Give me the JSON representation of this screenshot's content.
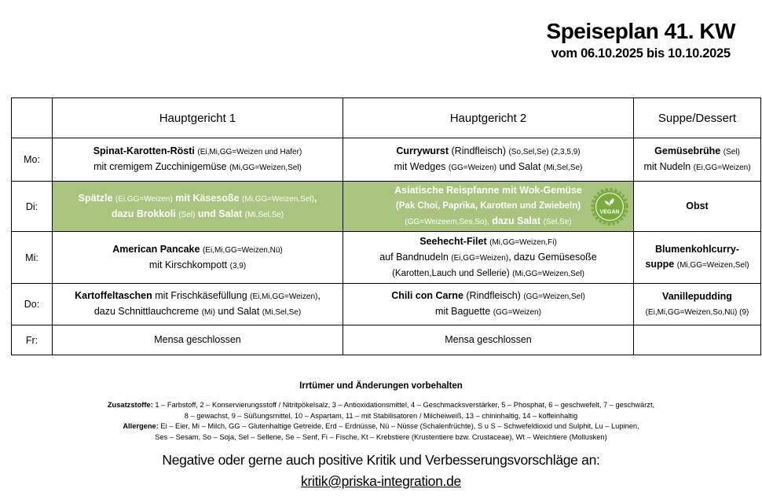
{
  "title": "Speiseplan 41. KW",
  "subtitle": "vom 06.10.2025 bis 10.10.2025",
  "colors": {
    "highlight_green": "#a9c47e",
    "vegan_badge_green": "#7cab3d",
    "border": "#000000"
  },
  "badges": {
    "vegan_label": "VEGAN"
  },
  "table": {
    "headers": [
      "",
      "Hauptgericht 1",
      "Hauptgericht 2",
      "Suppe/Dessert"
    ],
    "rows": [
      {
        "day": "Mo:",
        "cells": [
          {
            "highlight": false,
            "lines": [
              [
                {
                  "t": "Spinat-Karotten-Rösti",
                  "b": true
                },
                {
                  "t": " "
                },
                {
                  "t": "(Ei,Mi,GG=Weizen und Hafer)",
                  "s": true
                }
              ],
              [
                {
                  "t": "mit cremigem Zucchinigemüse "
                },
                {
                  "t": "(Mi,GG=Weizen,Sel)",
                  "s": true
                }
              ]
            ]
          },
          {
            "highlight": false,
            "lines": [
              [
                {
                  "t": "Currywurst",
                  "b": true
                },
                {
                  "t": " (Rindfleisch) "
                },
                {
                  "t": "(So,Sel,Se) (2,3,5,9)",
                  "s": true
                }
              ],
              [
                {
                  "t": "mit Wedges "
                },
                {
                  "t": "(GG=Weizen)",
                  "s": true
                },
                {
                  "t": " und Salat "
                },
                {
                  "t": "(Mi,Sel,Se)",
                  "s": true
                }
              ]
            ]
          },
          {
            "highlight": false,
            "lines": [
              [
                {
                  "t": "Gemüsebrühe",
                  "b": true
                },
                {
                  "t": " "
                },
                {
                  "t": "(Sel)",
                  "s": true
                }
              ],
              [
                {
                  "t": "mit Nudeln "
                },
                {
                  "t": "(Ei,GG=Weizen)",
                  "s": true
                }
              ]
            ]
          }
        ]
      },
      {
        "day": "Di:",
        "cells": [
          {
            "highlight": true,
            "lines": [
              [
                {
                  "t": "Spätzle",
                  "b": true
                },
                {
                  "t": " "
                },
                {
                  "t": "(Ei,GG=Weizen)",
                  "s": true
                },
                {
                  "t": " mit Käsesoße",
                  "b": true
                },
                {
                  "t": " "
                },
                {
                  "t": "(Mi,GG=Weizen,Sel)",
                  "s": true
                },
                {
                  "t": ",",
                  "b": true
                }
              ],
              [
                {
                  "t": "dazu Brokkoli",
                  "b": true
                },
                {
                  "t": " "
                },
                {
                  "t": "(Sel)",
                  "s": true
                },
                {
                  "t": " und Salat",
                  "b": true
                },
                {
                  "t": " "
                },
                {
                  "t": "(Mi,Sel,Se)",
                  "s": true
                }
              ]
            ]
          },
          {
            "highlight": true,
            "vegan": true,
            "lines": [
              [
                {
                  "t": "Asiatische Reispfanne",
                  "b": true
                },
                {
                  "t": " mit Wok-Gemüse",
                  "b": true
                }
              ],
              [
                {
                  "t": "(Pak Choi, Paprika, Karotten und Zwiebeln)",
                  "b": true,
                  "m": true
                }
              ],
              [
                {
                  "t": "(GG=Weizeem,Ses,So),",
                  "s": true
                },
                {
                  "t": " dazu Salat",
                  "b": true
                },
                {
                  "t": " "
                },
                {
                  "t": "(Sel,Se)",
                  "s": true
                }
              ]
            ]
          },
          {
            "highlight": false,
            "lines": [
              [
                {
                  "t": "Obst",
                  "b": true
                }
              ]
            ]
          }
        ]
      },
      {
        "day": "Mi:",
        "cells": [
          {
            "highlight": false,
            "lines": [
              [
                {
                  "t": "American Pancake",
                  "b": true
                },
                {
                  "t": " "
                },
                {
                  "t": "(Ei,Mi,GG=Weizen,Nü)",
                  "s": true
                }
              ],
              [
                {
                  "t": "mit Kirschkompott "
                },
                {
                  "t": "(3,9)",
                  "s": true
                }
              ]
            ]
          },
          {
            "highlight": false,
            "lines": [
              [
                {
                  "t": "Seehecht-Filet",
                  "b": true
                },
                {
                  "t": " "
                },
                {
                  "t": "(Mi,GG=Weizen,Fi)",
                  "s": true
                }
              ],
              [
                {
                  "t": "auf Bandnudeln "
                },
                {
                  "t": "(Ei,GG=Weizen)",
                  "s": true
                },
                {
                  "t": ", dazu Gemüsesoße"
                }
              ],
              [
                {
                  "t": "(Karotten,Lauch und Sellerie)",
                  "m": true
                },
                {
                  "t": " "
                },
                {
                  "t": "(Mi,GG=Weizen,Sel)",
                  "s": true
                }
              ]
            ]
          },
          {
            "highlight": false,
            "lines": [
              [
                {
                  "t": "Blumenkohlcurry-",
                  "b": true
                }
              ],
              [
                {
                  "t": "suppe",
                  "b": true
                },
                {
                  "t": " "
                },
                {
                  "t": "(Mi,GG=Weizen,Sel)",
                  "s": true
                }
              ]
            ]
          }
        ]
      },
      {
        "day": "Do:",
        "cells": [
          {
            "highlight": false,
            "lines": [
              [
                {
                  "t": "Kartoffeltaschen",
                  "b": true
                },
                {
                  "t": " mit Frischkäsefüllung "
                },
                {
                  "t": "(Ei,Mi,GG=Weizen)",
                  "s": true
                },
                {
                  "t": ","
                }
              ],
              [
                {
                  "t": "dazu Schnittlauchcreme "
                },
                {
                  "t": "(Mi)",
                  "s": true
                },
                {
                  "t": " und Salat "
                },
                {
                  "t": "(Mi,Sel,Se)",
                  "s": true
                }
              ]
            ]
          },
          {
            "highlight": false,
            "lines": [
              [
                {
                  "t": "Chili con Carne",
                  "b": true
                },
                {
                  "t": " (Rindfleisch) "
                },
                {
                  "t": "(GG=Weizen,Sel)",
                  "s": true
                }
              ],
              [
                {
                  "t": "mit Baguette "
                },
                {
                  "t": "(GG=Weizen)",
                  "s": true
                }
              ]
            ]
          },
          {
            "highlight": false,
            "lines": [
              [
                {
                  "t": "Vanillepudding",
                  "b": true
                }
              ],
              [
                {
                  "t": "(Ei,Mi,GG=Weizen,So,Nü) (9)",
                  "s": true
                }
              ]
            ]
          }
        ]
      },
      {
        "day": "Fr:",
        "cells": [
          {
            "highlight": false,
            "lines": [
              [
                {
                  "t": "Mensa geschlossen"
                }
              ]
            ]
          },
          {
            "highlight": false,
            "lines": [
              [
                {
                  "t": "Mensa geschlossen"
                }
              ]
            ]
          },
          {
            "highlight": false,
            "lines": []
          }
        ]
      }
    ]
  },
  "footer": {
    "disclaimer": "Irrtümer und Änderungen vorbehalten",
    "additives_label": "Zusatzstoffe:",
    "additives_line1": "1 – Farbstoff, 2 – Konservierungsstoff / Nitritpökelsalz, 3 – Antioxidationsmittel, 4 – Geschmacksverstärker, 5 – Phosphat, 6 – geschwefelt, 7 – geschwärzt,",
    "additives_line2": "8 – gewachst, 9 – Süßungsmittel, 10 – Aspartam, 11 – mit Stabilisatoren / Milcheiweiß, 13 – chininhaltig, 14 – koffeinhaltig",
    "allergens_label": "Allergene:",
    "allergens_line1": "Ei – Eier, Mi – Milch, GG – Glutenhaltige Getreide, Erd – Erdnüsse, Nü – Nüsse (Schalenfrüchte), S u S – Schwefeldioxid und Sulphit, Lu – Lupinen,",
    "allergens_line2": "Ses – Sesam, So – Soja, Sel – Sellerie, Se – Senf, Fi – Fische, Kt – Krebstiere (Krustentiere bzw. Crustaceae), Wt – Weichtiere (Mollusken)",
    "feedback_text": "Negative oder gerne auch positive Kritik und Verbesserungsvorschläge an:",
    "email": "kritik@priska-integration.de"
  }
}
